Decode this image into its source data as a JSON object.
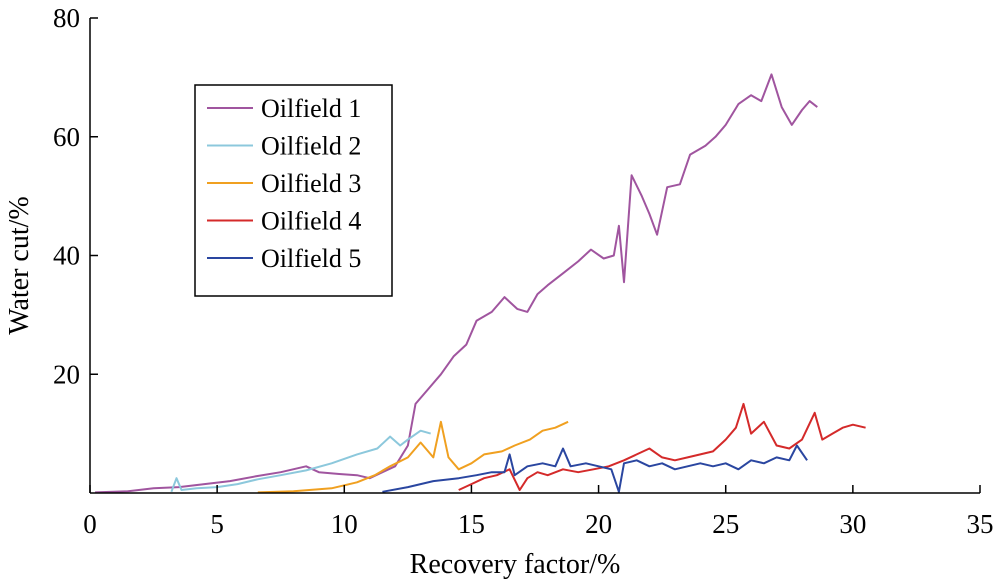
{
  "chart_data": {
    "type": "line",
    "xlabel": "Recovery factor/%",
    "ylabel": "Water cut/%",
    "xlim": [
      0,
      35
    ],
    "ylim": [
      0,
      80
    ],
    "xticks": [
      "0",
      "5",
      "10",
      "15",
      "20",
      "25",
      "30",
      "35"
    ],
    "yticks": [
      "20",
      "40",
      "60",
      "80"
    ],
    "legend": "top-left",
    "grid": false,
    "series": [
      {
        "name": "Oilfield 1",
        "color": "#a0559f",
        "points": [
          [
            0.2,
            0.1
          ],
          [
            1.5,
            0.3
          ],
          [
            2.5,
            0.8
          ],
          [
            3.5,
            1.0
          ],
          [
            4.5,
            1.5
          ],
          [
            5.5,
            2.0
          ],
          [
            6.5,
            2.8
          ],
          [
            7.5,
            3.5
          ],
          [
            8.5,
            4.5
          ],
          [
            9.0,
            3.5
          ],
          [
            9.8,
            3.2
          ],
          [
            10.5,
            3.0
          ],
          [
            11.0,
            2.5
          ],
          [
            11.5,
            3.5
          ],
          [
            12.0,
            4.5
          ],
          [
            12.5,
            8.0
          ],
          [
            12.8,
            15.0
          ],
          [
            13.3,
            17.5
          ],
          [
            13.8,
            20.0
          ],
          [
            14.3,
            23.0
          ],
          [
            14.8,
            25.0
          ],
          [
            15.2,
            29.0
          ],
          [
            15.8,
            30.5
          ],
          [
            16.3,
            33.0
          ],
          [
            16.8,
            31.0
          ],
          [
            17.2,
            30.5
          ],
          [
            17.6,
            33.5
          ],
          [
            18.0,
            35.0
          ],
          [
            18.6,
            37.0
          ],
          [
            19.2,
            39.0
          ],
          [
            19.7,
            41.0
          ],
          [
            20.2,
            39.5
          ],
          [
            20.6,
            40.0
          ],
          [
            20.8,
            45.0
          ],
          [
            21.0,
            35.5
          ],
          [
            21.3,
            53.5
          ],
          [
            21.7,
            50.0
          ],
          [
            22.0,
            47.0
          ],
          [
            22.3,
            43.5
          ],
          [
            22.7,
            51.5
          ],
          [
            23.2,
            52.0
          ],
          [
            23.6,
            57.0
          ],
          [
            24.2,
            58.5
          ],
          [
            24.6,
            60.0
          ],
          [
            25.0,
            62.0
          ],
          [
            25.5,
            65.5
          ],
          [
            26.0,
            67.0
          ],
          [
            26.4,
            66.0
          ],
          [
            26.8,
            70.5
          ],
          [
            27.2,
            65.0
          ],
          [
            27.6,
            62.0
          ],
          [
            28.0,
            64.5
          ],
          [
            28.3,
            66.0
          ],
          [
            28.6,
            65.0
          ]
        ]
      },
      {
        "name": "Oilfield 2",
        "color": "#8cc8dc",
        "points": [
          [
            3.2,
            0.2
          ],
          [
            3.4,
            2.5
          ],
          [
            3.6,
            0.5
          ],
          [
            4.2,
            0.8
          ],
          [
            5.0,
            1.0
          ],
          [
            5.8,
            1.5
          ],
          [
            6.6,
            2.3
          ],
          [
            7.5,
            3.0
          ],
          [
            8.5,
            3.8
          ],
          [
            9.5,
            5.0
          ],
          [
            10.5,
            6.5
          ],
          [
            11.3,
            7.5
          ],
          [
            11.8,
            9.5
          ],
          [
            12.2,
            8.0
          ],
          [
            12.5,
            9.0
          ],
          [
            13.0,
            10.5
          ],
          [
            13.4,
            10.0
          ]
        ]
      },
      {
        "name": "Oilfield 3",
        "color": "#f0a020",
        "points": [
          [
            6.6,
            0.1
          ],
          [
            8.0,
            0.3
          ],
          [
            9.5,
            0.8
          ],
          [
            10.5,
            1.8
          ],
          [
            11.2,
            3.0
          ],
          [
            11.8,
            4.5
          ],
          [
            12.5,
            6.0
          ],
          [
            13.0,
            8.5
          ],
          [
            13.5,
            6.0
          ],
          [
            13.8,
            12.0
          ],
          [
            14.1,
            6.0
          ],
          [
            14.5,
            4.0
          ],
          [
            15.0,
            5.0
          ],
          [
            15.5,
            6.5
          ],
          [
            16.2,
            7.0
          ],
          [
            16.7,
            8.0
          ],
          [
            17.3,
            9.0
          ],
          [
            17.8,
            10.5
          ],
          [
            18.3,
            11.0
          ],
          [
            18.8,
            12.0
          ]
        ]
      },
      {
        "name": "Oilfield 4",
        "color": "#d42a2a",
        "points": [
          [
            14.5,
            0.5
          ],
          [
            15.0,
            1.5
          ],
          [
            15.5,
            2.5
          ],
          [
            16.0,
            3.0
          ],
          [
            16.5,
            4.0
          ],
          [
            16.9,
            0.5
          ],
          [
            17.2,
            2.5
          ],
          [
            17.6,
            3.5
          ],
          [
            18.0,
            3.0
          ],
          [
            18.6,
            4.0
          ],
          [
            19.2,
            3.5
          ],
          [
            19.8,
            4.0
          ],
          [
            20.4,
            4.5
          ],
          [
            21.0,
            5.5
          ],
          [
            21.5,
            6.5
          ],
          [
            22.0,
            7.5
          ],
          [
            22.5,
            6.0
          ],
          [
            23.0,
            5.5
          ],
          [
            23.5,
            6.0
          ],
          [
            24.0,
            6.5
          ],
          [
            24.5,
            7.0
          ],
          [
            25.0,
            9.0
          ],
          [
            25.4,
            11.0
          ],
          [
            25.7,
            15.0
          ],
          [
            26.0,
            10.0
          ],
          [
            26.5,
            12.0
          ],
          [
            27.0,
            8.0
          ],
          [
            27.5,
            7.5
          ],
          [
            28.0,
            9.0
          ],
          [
            28.5,
            13.5
          ],
          [
            28.8,
            9.0
          ],
          [
            29.2,
            10.0
          ],
          [
            29.6,
            11.0
          ],
          [
            30.0,
            11.5
          ],
          [
            30.5,
            11.0
          ]
        ]
      },
      {
        "name": "Oilfield 5",
        "color": "#2a46a0",
        "points": [
          [
            11.5,
            0.2
          ],
          [
            12.5,
            1.0
          ],
          [
            13.5,
            2.0
          ],
          [
            14.5,
            2.5
          ],
          [
            15.2,
            3.0
          ],
          [
            15.8,
            3.5
          ],
          [
            16.3,
            3.5
          ],
          [
            16.5,
            6.5
          ],
          [
            16.7,
            3.0
          ],
          [
            17.2,
            4.5
          ],
          [
            17.8,
            5.0
          ],
          [
            18.3,
            4.5
          ],
          [
            18.6,
            7.5
          ],
          [
            18.9,
            4.5
          ],
          [
            19.5,
            5.0
          ],
          [
            20.0,
            4.5
          ],
          [
            20.5,
            4.0
          ],
          [
            20.8,
            0.2
          ],
          [
            21.0,
            5.0
          ],
          [
            21.5,
            5.5
          ],
          [
            22.0,
            4.5
          ],
          [
            22.5,
            5.0
          ],
          [
            23.0,
            4.0
          ],
          [
            23.5,
            4.5
          ],
          [
            24.0,
            5.0
          ],
          [
            24.5,
            4.5
          ],
          [
            25.0,
            5.0
          ],
          [
            25.5,
            4.0
          ],
          [
            26.0,
            5.5
          ],
          [
            26.5,
            5.0
          ],
          [
            27.0,
            6.0
          ],
          [
            27.5,
            5.5
          ],
          [
            27.8,
            8.0
          ],
          [
            28.2,
            5.5
          ]
        ]
      }
    ]
  }
}
